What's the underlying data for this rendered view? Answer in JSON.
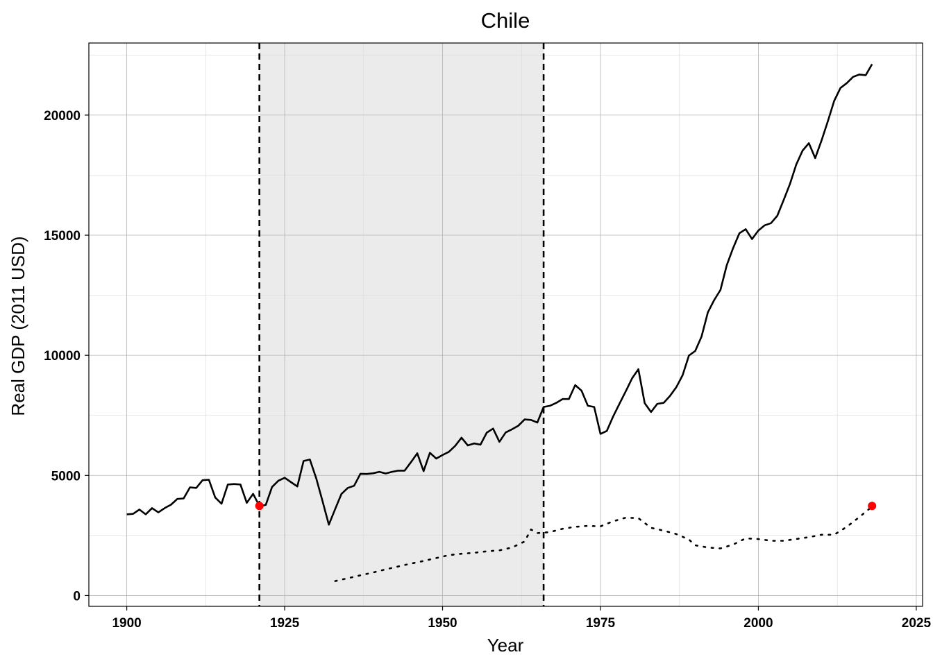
{
  "chart_data": {
    "type": "line",
    "title": "Chile",
    "xlabel": "Year",
    "ylabel": "Real GDP (2011 USD)",
    "xlim": [
      1894,
      2026
    ],
    "ylim": [
      -450,
      23000
    ],
    "x_ticks": [
      1900,
      1925,
      1950,
      1975,
      2000,
      2025
    ],
    "y_ticks": [
      0,
      5000,
      10000,
      15000,
      20000
    ],
    "x_minor": [
      1912.5,
      1937.5,
      1962.5,
      1987.5,
      2012.5
    ],
    "y_minor": [
      2500,
      7500,
      12500,
      17500,
      22500
    ],
    "grid": true,
    "shaded_region": {
      "x_start": 1921,
      "x_end": 1966,
      "color": "#ebebeb"
    },
    "vlines": [
      {
        "x": 1921,
        "style": "dashed"
      },
      {
        "x": 1966,
        "style": "dashed"
      }
    ],
    "series": [
      {
        "style": "solid",
        "color": "#000000",
        "x": [
          1900,
          1901,
          1902,
          1903,
          1904,
          1905,
          1906,
          1907,
          1908,
          1909,
          1910,
          1911,
          1912,
          1913,
          1914,
          1915,
          1916,
          1917,
          1918,
          1919,
          1920,
          1921,
          1922,
          1923,
          1924,
          1925,
          1926,
          1927,
          1928,
          1929,
          1930,
          1931,
          1932,
          1933,
          1934,
          1935,
          1936,
          1937,
          1938,
          1939,
          1940,
          1941,
          1942,
          1943,
          1944,
          1945,
          1946,
          1947,
          1948,
          1949,
          1950,
          1951,
          1952,
          1953,
          1954,
          1955,
          1956,
          1957,
          1958,
          1959,
          1960,
          1961,
          1962,
          1963,
          1964,
          1965,
          1966,
          1967,
          1968,
          1969,
          1970,
          1971,
          1972,
          1973,
          1974,
          1975,
          1976,
          1977,
          1978,
          1979,
          1980,
          1981,
          1982,
          1983,
          1984,
          1985,
          1986,
          1987,
          1988,
          1989,
          1990,
          1991,
          1992,
          1993,
          1994,
          1995,
          1996,
          1997,
          1998,
          1999,
          2000,
          2001,
          2002,
          2003,
          2004,
          2005,
          2006,
          2007,
          2008,
          2009,
          2010,
          2011,
          2012,
          2013,
          2014,
          2015,
          2016,
          2017,
          2018
        ],
        "y": [
          3380,
          3400,
          3580,
          3380,
          3640,
          3460,
          3640,
          3780,
          4020,
          4040,
          4500,
          4480,
          4800,
          4820,
          4080,
          3820,
          4620,
          4640,
          4620,
          3860,
          4230,
          3730,
          3770,
          4520,
          4780,
          4900,
          4720,
          4540,
          5600,
          5660,
          4880,
          3930,
          2950,
          3600,
          4230,
          4480,
          4570,
          5070,
          5060,
          5090,
          5150,
          5080,
          5150,
          5200,
          5200,
          5550,
          5920,
          5180,
          5940,
          5700,
          5850,
          5980,
          6230,
          6570,
          6250,
          6330,
          6280,
          6780,
          6950,
          6400,
          6790,
          6920,
          7070,
          7330,
          7310,
          7200,
          7850,
          7900,
          8020,
          8180,
          8180,
          8760,
          8530,
          7900,
          7850,
          6730,
          6850,
          7450,
          7980,
          8500,
          9040,
          9420,
          8010,
          7640,
          7980,
          8020,
          8310,
          8670,
          9170,
          9990,
          10180,
          10780,
          11790,
          12300,
          12720,
          13750,
          14460,
          15080,
          15250,
          14840,
          15190,
          15410,
          15500,
          15810,
          16460,
          17130,
          17940,
          18520,
          18830,
          18210,
          18940,
          19740,
          20590,
          21130,
          21330,
          21590,
          21690,
          21660,
          22120
        ]
      },
      {
        "style": "dotted",
        "color": "#000000",
        "x": [
          1933,
          1935,
          1937,
          1939,
          1941,
          1943,
          1945,
          1947,
          1949,
          1951,
          1953,
          1955,
          1957,
          1959,
          1961,
          1963,
          1964,
          1965,
          1967,
          1969,
          1971,
          1973,
          1975,
          1977,
          1979,
          1981,
          1983,
          1985,
          1987,
          1989,
          1990,
          1992,
          1994,
          1996,
          1998,
          2000,
          2002,
          2004,
          2006,
          2008,
          2010,
          2012,
          2014,
          2016,
          2018
        ],
        "y": [
          600,
          720,
          840,
          960,
          1090,
          1210,
          1330,
          1440,
          1560,
          1680,
          1740,
          1780,
          1840,
          1880,
          2000,
          2250,
          2750,
          2600,
          2640,
          2780,
          2860,
          2900,
          2880,
          3090,
          3240,
          3220,
          2820,
          2700,
          2560,
          2330,
          2090,
          2000,
          1960,
          2120,
          2380,
          2350,
          2280,
          2280,
          2350,
          2430,
          2530,
          2530,
          2860,
          3270,
          3700
        ]
      }
    ],
    "highlight_points": [
      {
        "x": 1921,
        "y": 3730,
        "color": "#ff0000"
      },
      {
        "x": 2018,
        "y": 3730,
        "color": "#ff0000"
      }
    ]
  }
}
